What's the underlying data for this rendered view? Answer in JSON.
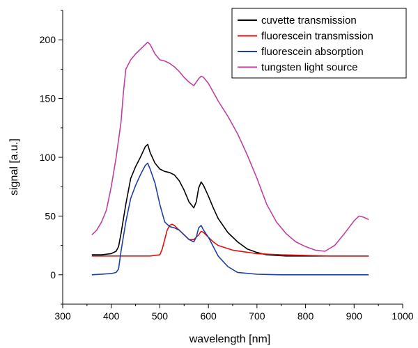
{
  "chart_data": {
    "type": "line",
    "title": "",
    "xlabel": "wavelength [nm]",
    "ylabel": "signal [a.u.]",
    "xlim": [
      300,
      1000
    ],
    "ylim": [
      -25,
      225
    ],
    "xticks": [
      300,
      400,
      500,
      600,
      700,
      800,
      900,
      1000
    ],
    "yticks": [
      0,
      50,
      100,
      150,
      200
    ],
    "grid": false,
    "legend_position": "top-right",
    "series": [
      {
        "name": "cuvette transmission",
        "color": "#000000",
        "x": [
          360,
          380,
          400,
          410,
          415,
          420,
          430,
          440,
          450,
          460,
          470,
          475,
          480,
          490,
          500,
          510,
          520,
          530,
          540,
          550,
          560,
          570,
          575,
          580,
          585,
          590,
          600,
          610,
          620,
          640,
          660,
          680,
          700,
          720,
          740,
          760,
          800,
          850,
          900,
          930
        ],
        "y": [
          17,
          17,
          18,
          20,
          24,
          35,
          60,
          82,
          92,
          100,
          109,
          111,
          104,
          95,
          90,
          88,
          87,
          85,
          80,
          72,
          62,
          57,
          62,
          74,
          79,
          76,
          67,
          57,
          48,
          36,
          28,
          22,
          19,
          17,
          16.5,
          16,
          16,
          16,
          16,
          16
        ]
      },
      {
        "name": "fluorescein transmission",
        "color": "#e01010",
        "x": [
          360,
          400,
          450,
          480,
          500,
          505,
          510,
          515,
          520,
          525,
          530,
          540,
          550,
          560,
          570,
          580,
          585,
          590,
          600,
          610,
          620,
          650,
          700,
          750,
          800,
          850,
          900,
          930
        ],
        "y": [
          16,
          16,
          16,
          16,
          17,
          22,
          30,
          38,
          42,
          43,
          42,
          38,
          34,
          30,
          30,
          34,
          37,
          36,
          32,
          28,
          25,
          21,
          18,
          17,
          16.5,
          16,
          16,
          16
        ]
      },
      {
        "name": "fluorescein absorption",
        "color": "#2040a0",
        "x": [
          360,
          400,
          410,
          415,
          420,
          430,
          440,
          450,
          460,
          470,
          475,
          480,
          490,
          500,
          510,
          520,
          530,
          540,
          550,
          560,
          570,
          575,
          580,
          585,
          590,
          600,
          610,
          620,
          640,
          660,
          700,
          750,
          800,
          850,
          900,
          930
        ],
        "y": [
          0,
          1,
          2,
          5,
          20,
          45,
          65,
          76,
          85,
          93,
          95,
          90,
          78,
          60,
          45,
          41,
          40,
          38,
          34,
          30,
          28,
          32,
          40,
          42,
          38,
          32,
          24,
          16,
          7,
          2,
          0.5,
          0,
          0,
          0,
          0,
          0
        ]
      },
      {
        "name": "tungsten light source",
        "color": "#c040a0",
        "x": [
          360,
          370,
          380,
          390,
          400,
          410,
          420,
          425,
          430,
          440,
          450,
          460,
          470,
          475,
          480,
          490,
          500,
          510,
          520,
          530,
          540,
          550,
          560,
          570,
          580,
          585,
          590,
          600,
          620,
          640,
          660,
          680,
          700,
          720,
          740,
          760,
          780,
          800,
          820,
          840,
          860,
          880,
          900,
          910,
          920,
          930
        ],
        "y": [
          34,
          38,
          45,
          55,
          75,
          100,
          130,
          155,
          175,
          183,
          188,
          192,
          196,
          198,
          196,
          188,
          183,
          182,
          180,
          177,
          173,
          168,
          164,
          161,
          167,
          169,
          168,
          163,
          148,
          135,
          120,
          102,
          82,
          60,
          45,
          35,
          28,
          24,
          21,
          20,
          25,
          35,
          46,
          50,
          49,
          47
        ]
      }
    ]
  }
}
